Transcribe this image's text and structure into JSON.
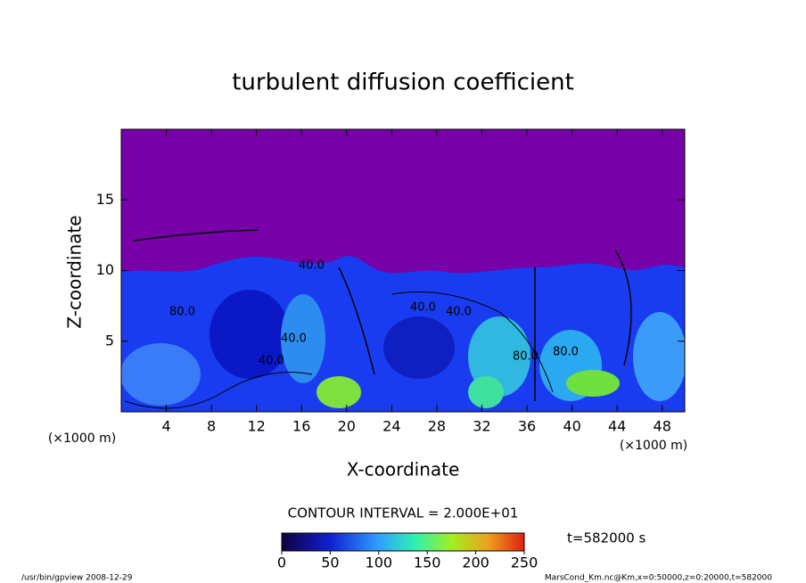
{
  "chart_data": {
    "type": "contour",
    "title": "turbulent diffusion coefficient",
    "xlabel": "X-coordinate",
    "ylabel": "Z-coordinate",
    "xunit": "(×1000 m)",
    "xlim": [
      0,
      50
    ],
    "ylim": [
      0,
      20
    ],
    "xticks": [
      4,
      8,
      12,
      16,
      20,
      24,
      28,
      32,
      36,
      40,
      44,
      48
    ],
    "yticks": [
      5,
      10,
      15
    ],
    "annotations": [
      "40.0",
      "40.0",
      "40.0",
      "80.0",
      "40.0",
      "40.0",
      "80.0",
      "80.0"
    ],
    "contour_interval": "CONTOUR INTERVAL = 2.000E+01",
    "time_label": "t=582000 s",
    "colorbar": {
      "xlim": [
        0,
        250
      ],
      "xticks": [
        0,
        50,
        100,
        150,
        200,
        250
      ]
    },
    "footer_left": "/usr/bin/gpview   2008-12-29",
    "footer_right": "MarsCond_Km.nc@Km,x=0:50000,z=0:20000,t=582000"
  }
}
